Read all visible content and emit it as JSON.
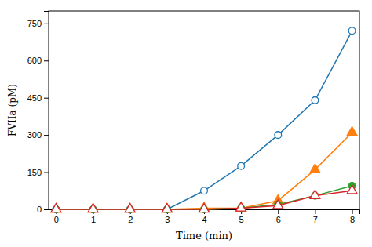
{
  "chart_data": {
    "type": "line",
    "x": [
      0,
      1,
      2,
      3,
      4,
      5,
      6,
      7,
      8
    ],
    "series": [
      {
        "values": [
          0,
          0,
          0,
          0,
          75,
          175,
          300,
          440,
          720
        ],
        "marker": "open-circle",
        "line_style": "solid"
      },
      {
        "values": [
          0,
          0,
          0,
          0,
          5,
          5,
          35,
          160,
          310
        ],
        "marker": "triangle",
        "line_style": "solid"
      },
      {
        "values": [
          0,
          0,
          0,
          0,
          0,
          5,
          20,
          55,
          95
        ],
        "marker": "circle",
        "line_style": "solid"
      },
      {
        "values": [
          0,
          0,
          0,
          0,
          0,
          5,
          15,
          55,
          75
        ],
        "marker": "open-triangle",
        "line_style": "solid"
      }
    ],
    "xlabel": "Time (min)",
    "ylabel": "FVIIa (pM)",
    "xlim": [
      -0.2,
      8.2
    ],
    "ylim": [
      0,
      800
    ],
    "xticks": [
      0,
      1,
      2,
      3,
      4,
      5,
      6,
      7,
      8
    ],
    "yticks": [
      0,
      150,
      300,
      450,
      600,
      750
    ]
  }
}
